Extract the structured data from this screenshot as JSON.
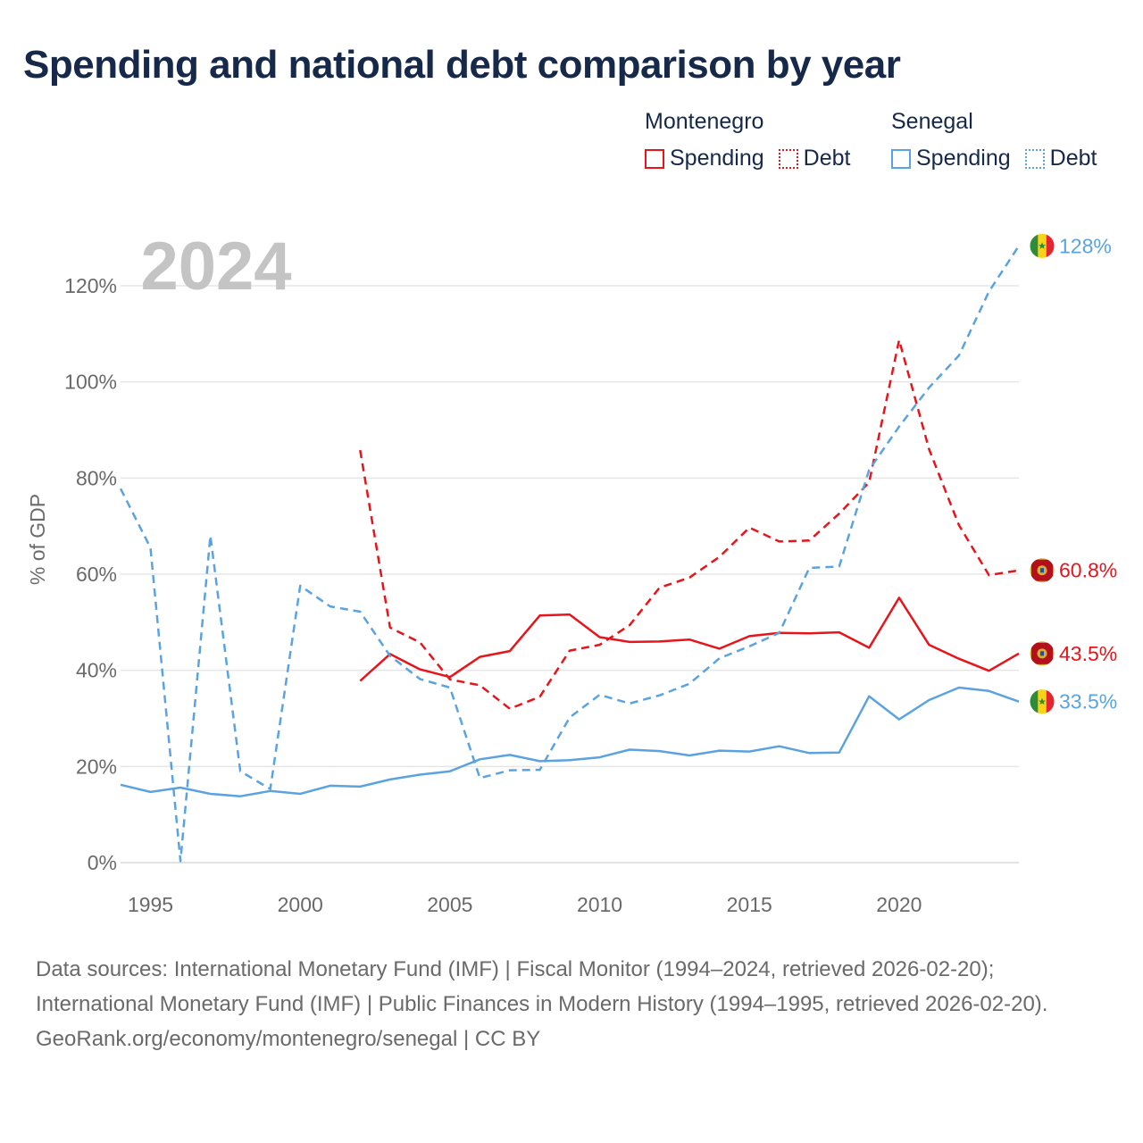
{
  "title": "Spending and national debt comparison by year",
  "legend": {
    "groups": [
      {
        "name": "Montenegro",
        "color": "#e8141b",
        "items": [
          {
            "label": "Spending",
            "style": "solid"
          },
          {
            "label": "Debt",
            "style": "dotted"
          }
        ]
      },
      {
        "name": "Senegal",
        "color": "#5ba3e0",
        "items": [
          {
            "label": "Spending",
            "style": "solid"
          },
          {
            "label": "Debt",
            "style": "dotted"
          }
        ]
      }
    ]
  },
  "chart_data": {
    "type": "line",
    "year_label": "2024",
    "ylabel": "% of GDP",
    "xlim": [
      1994,
      2024
    ],
    "ylim": [
      0,
      120
    ],
    "y_ticks": [
      0,
      20,
      40,
      60,
      80,
      100,
      120
    ],
    "y_tick_labels": [
      "0%",
      "20%",
      "40%",
      "60%",
      "80%",
      "100%",
      "120%"
    ],
    "x_ticks": [
      1995,
      2000,
      2005,
      2010,
      2015,
      2020
    ],
    "x_tick_labels": [
      "1995",
      "2000",
      "2005",
      "2010",
      "2015",
      "2020"
    ],
    "series": [
      {
        "name": "Montenegro Spending",
        "country": "Montenegro",
        "color": "#e8141b",
        "dashed": false,
        "end_label": "43.5%",
        "x": [
          2002,
          2003,
          2004,
          2005,
          2006,
          2007,
          2008,
          2009,
          2010,
          2011,
          2012,
          2013,
          2014,
          2015,
          2016,
          2017,
          2018,
          2019,
          2020,
          2021,
          2022,
          2023,
          2024
        ],
        "values": [
          37.8,
          43.4,
          40.2,
          38.6,
          42.8,
          44.0,
          51.4,
          51.6,
          46.9,
          45.9,
          46.0,
          46.4,
          44.5,
          47.1,
          47.8,
          47.7,
          47.9,
          44.7,
          55.1,
          45.3,
          42.4,
          39.9,
          43.5
        ]
      },
      {
        "name": "Montenegro Debt",
        "country": "Montenegro",
        "color": "#e8141b",
        "dashed": true,
        "end_label": "60.8%",
        "x": [
          2002,
          2003,
          2004,
          2005,
          2006,
          2007,
          2008,
          2009,
          2010,
          2011,
          2012,
          2013,
          2014,
          2015,
          2016,
          2017,
          2018,
          2019,
          2020,
          2021,
          2022,
          2023,
          2024
        ],
        "values": [
          85.8,
          48.9,
          45.8,
          38.1,
          36.9,
          32.0,
          34.5,
          44.1,
          45.3,
          49.4,
          57.2,
          59.3,
          63.6,
          69.7,
          66.8,
          67.0,
          72.6,
          79.1,
          108.7,
          86.0,
          70.2,
          59.8,
          60.8
        ]
      },
      {
        "name": "Senegal Spending",
        "country": "Senegal",
        "color": "#5ba3e0",
        "dashed": false,
        "end_label": "33.5%",
        "x": [
          1994,
          1995,
          1996,
          1997,
          1998,
          1999,
          2000,
          2001,
          2002,
          2003,
          2004,
          2005,
          2006,
          2007,
          2008,
          2009,
          2010,
          2011,
          2012,
          2013,
          2014,
          2015,
          2016,
          2017,
          2018,
          2019,
          2020,
          2021,
          2022,
          2023,
          2024
        ],
        "values": [
          16.2,
          14.7,
          15.6,
          14.3,
          13.8,
          14.9,
          14.3,
          16.0,
          15.8,
          17.3,
          18.3,
          19.0,
          21.5,
          22.4,
          21.1,
          21.3,
          21.9,
          23.5,
          23.2,
          22.3,
          23.3,
          23.1,
          24.2,
          22.8,
          22.9,
          34.6,
          29.8,
          33.8,
          36.4,
          35.7,
          33.5
        ]
      },
      {
        "name": "Senegal Debt",
        "country": "Senegal",
        "color": "#5ba3e0",
        "dashed": true,
        "end_label": "128%",
        "x": [
          1994,
          1995,
          1996,
          1997,
          1998,
          1999,
          2000,
          2001,
          2002,
          2003,
          2004,
          2005,
          2006,
          2007,
          2008,
          2009,
          2010,
          2011,
          2012,
          2013,
          2014,
          2015,
          2016,
          2017,
          2018,
          2019,
          2020,
          2021,
          2022,
          2023,
          2024
        ],
        "values": [
          77.8,
          65.5,
          0.3,
          68.0,
          19.0,
          15.3,
          57.6,
          53.3,
          52.2,
          43.0,
          38.2,
          36.4,
          17.6,
          19.2,
          19.3,
          30.2,
          34.9,
          33.1,
          34.8,
          37.2,
          42.5,
          45.0,
          47.8,
          61.3,
          61.6,
          81.7,
          90.7,
          98.8,
          105.5,
          118.8,
          128.3
        ]
      }
    ]
  },
  "footer": {
    "sources": "Data sources: International Monetary Fund (IMF) | Fiscal Monitor (1994–2024, retrieved 2026-02-20); International Monetary Fund (IMF) | Public Finances in Modern History (1994–1995, retrieved 2026-02-20).",
    "credit": "GeoRank.org/economy/montenegro/senegal | CC BY"
  }
}
